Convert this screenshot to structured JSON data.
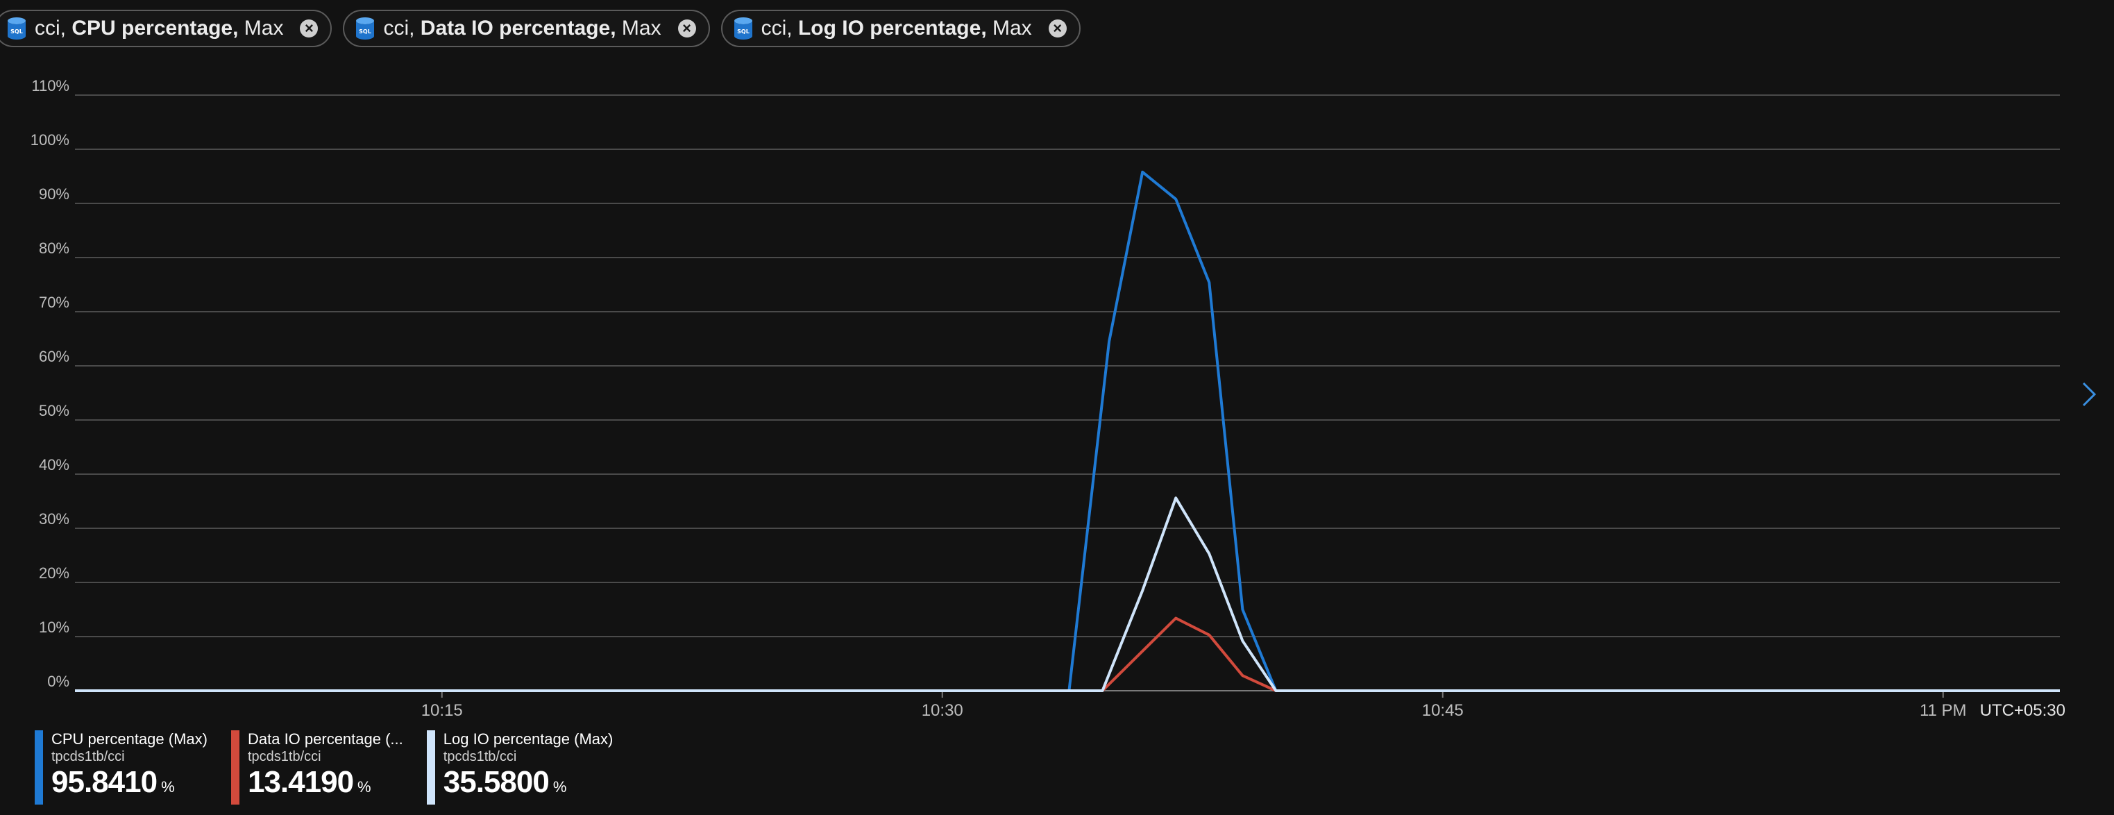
{
  "pills": [
    {
      "resource": "cci,",
      "metric": "CPU percentage,",
      "agg": "Max",
      "icon": "sql-database-icon"
    },
    {
      "resource": "cci,",
      "metric": "Data IO percentage,",
      "agg": "Max",
      "icon": "sql-database-icon"
    },
    {
      "resource": "cci,",
      "metric": "Log IO percentage,",
      "agg": "Max",
      "icon": "sql-database-icon"
    }
  ],
  "icons": {
    "db": "SQL",
    "close": "×"
  },
  "timezone": "UTC+05:30",
  "chart_data": {
    "type": "line",
    "y_ticks": [
      "0%",
      "10%",
      "20%",
      "30%",
      "40%",
      "50%",
      "60%",
      "70%",
      "80%",
      "90%",
      "100%",
      "110%"
    ],
    "ylim": [
      0,
      110
    ],
    "x_ticks": [
      "10:15",
      "10:30",
      "10:45",
      "11 PM"
    ],
    "x_tick_minutes": [
      15,
      30,
      45,
      60
    ],
    "xlim_minutes": [
      4,
      63.5
    ],
    "grid": true,
    "series": [
      {
        "name": "CPU percentage (Max)",
        "color": "#1f7ad4",
        "x": [
          4,
          33.8,
          35,
          36,
          37,
          38,
          39,
          40,
          63.5
        ],
        "y": [
          0,
          0,
          64.5,
          95.8,
          90.8,
          75.4,
          15,
          0,
          0
        ]
      },
      {
        "name": "Data IO percentage (Max)",
        "color": "#d24a3c",
        "x": [
          4,
          34.8,
          37,
          38,
          39,
          40,
          63.5
        ],
        "y": [
          0,
          0,
          13.4,
          10.3,
          2.8,
          0,
          0
        ]
      },
      {
        "name": "Log IO percentage (Max)",
        "color": "#cfe4fa",
        "x": [
          4,
          34.8,
          36,
          37,
          38,
          39,
          40,
          63.5
        ],
        "y": [
          0,
          0,
          18.5,
          35.6,
          25.3,
          9.2,
          0,
          0
        ]
      }
    ]
  },
  "legend": [
    {
      "name": "CPU percentage (Max)",
      "resource": "tpcds1tb/cci",
      "value": "95.8410",
      "unit": "%",
      "color": "#1f7ad4"
    },
    {
      "name": "Data IO percentage (...",
      "resource": "tpcds1tb/cci",
      "value": "13.4190",
      "unit": "%",
      "color": "#d24a3c"
    },
    {
      "name": "Log IO percentage (Max)",
      "resource": "tpcds1tb/cci",
      "value": "35.5800",
      "unit": "%",
      "color": "#cfe4fa"
    }
  ]
}
